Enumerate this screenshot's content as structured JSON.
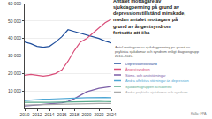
{
  "chart_data": {
    "type": "line",
    "title": "Antalet mottagare av\nsjukdagpenning på grund av\ndepressionstillstånd minskade,\nmedan antalet mottagare på\ngrund av ångestsyndrom\nfortsatte att öka",
    "subtitle": "Antal mottagare av sjukdagpenning på grund av\npsykiska sjukdomar och syndrom enligt diagnosgrupp\n2010–2024.",
    "annotations": [
      "Källa: FPA"
    ],
    "x": [
      2010,
      2011,
      2012,
      2013,
      2014,
      2015,
      2016,
      2017,
      2018,
      2019,
      2020,
      2021,
      2022,
      2023,
      2024
    ],
    "series": [
      {
        "name": "Depressionstillstånd",
        "color": "#1f4e9c",
        "values": [
          38000,
          37000,
          35500,
          35000,
          35500,
          38000,
          41000,
          45000,
          44000,
          43000,
          42000,
          41000,
          40000,
          38500,
          37500
        ]
      },
      {
        "name": "Ångestsyndrom",
        "color": "#d94f7a",
        "values": [
          19000,
          19500,
          19000,
          18500,
          19000,
          20000,
          22000,
          27000,
          33000,
          38000,
          40000,
          43000,
          46000,
          49000,
          51000
        ]
      },
      {
        "name": "Söms- och ånststörningar",
        "color": "#7b5ea7",
        "values": [
          1500,
          1800,
          2000,
          2200,
          2500,
          2800,
          3200,
          4000,
          5500,
          7500,
          9500,
          10500,
          11500,
          12000,
          12500
        ]
      },
      {
        "name": "Andra affektiva störningar än depression",
        "color": "#4da6d4",
        "values": [
          4500,
          4800,
          5000,
          5200,
          5300,
          5500,
          5700,
          5800,
          5900,
          6000,
          6100,
          6200,
          6300,
          6200,
          6100
        ]
      },
      {
        "name": "Sjukdomsgruppen schizofreni",
        "color": "#5aaa8c",
        "values": [
          3500,
          3600,
          3600,
          3500,
          3500,
          3600,
          3700,
          3700,
          3800,
          3900,
          3900,
          4000,
          4000,
          3900,
          3800
        ]
      },
      {
        "name": "Andra psykiska sjukdomar och syndrom",
        "color": "#aaaaaa",
        "values": [
          2000,
          2100,
          2100,
          2100,
          2200,
          2200,
          2300,
          2400,
          2500,
          2600,
          2700,
          2800,
          2800,
          2800,
          2800
        ]
      }
    ],
    "xlim": [
      2010,
      2024
    ],
    "xticks": [
      2010,
      2012,
      2014,
      2016,
      2018,
      2020,
      2022,
      2024
    ],
    "ylim": [
      0,
      60000
    ],
    "yticks": [
      {
        "value": 10000,
        "label": "10 000"
      },
      {
        "value": 20000,
        "label": "20 000"
      },
      {
        "value": 30000,
        "label": "30 000"
      },
      {
        "value": 40000,
        "label": "40 000"
      },
      {
        "value": 50000,
        "label": "50 000"
      },
      {
        "value": 60000,
        "label": "60 000"
      }
    ],
    "grid": "y",
    "legend": "right"
  }
}
